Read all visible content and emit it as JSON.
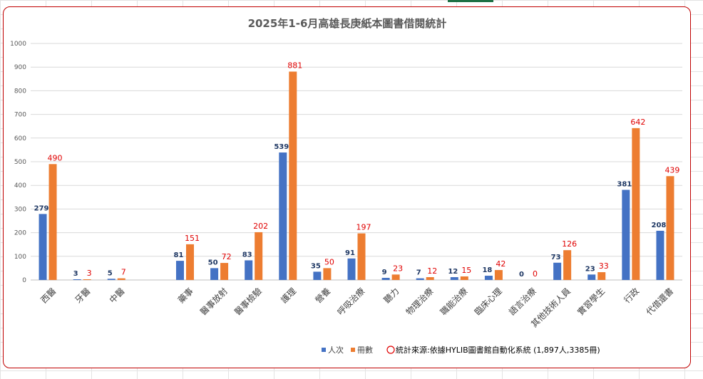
{
  "chart_data": {
    "type": "bar",
    "title": "2025年1-6月高雄長庚紙本圖書借閱統計",
    "categories": [
      "西醫",
      "牙醫",
      "中醫",
      "",
      "藥事",
      "醫事放射",
      "醫事檢驗",
      "護理",
      "營養",
      "呼吸治療",
      "聽力",
      "物理治療",
      "職能治療",
      "臨床心理",
      "語言治療",
      "其他技術人員",
      "實習學生",
      "行政",
      "代借還書"
    ],
    "series": [
      {
        "name": "人次",
        "color": "#4472c4",
        "values": [
          279,
          3,
          5,
          null,
          81,
          50,
          83,
          539,
          35,
          91,
          9,
          7,
          12,
          18,
          0,
          73,
          23,
          381,
          208
        ]
      },
      {
        "name": "冊數",
        "color": "#ed7d31",
        "values": [
          490,
          3,
          7,
          null,
          151,
          72,
          202,
          881,
          50,
          197,
          23,
          12,
          15,
          42,
          0,
          126,
          33,
          642,
          439
        ]
      }
    ],
    "ylim": [
      0,
      1000
    ],
    "yticks": [
      0,
      100,
      200,
      300,
      400,
      500,
      600,
      700,
      800,
      900,
      1000
    ],
    "grid": true,
    "legend_position": "bottom",
    "annotation": "統計來源:依據HYLIB圖書館自動化系統 (1,897人,3385冊)"
  }
}
